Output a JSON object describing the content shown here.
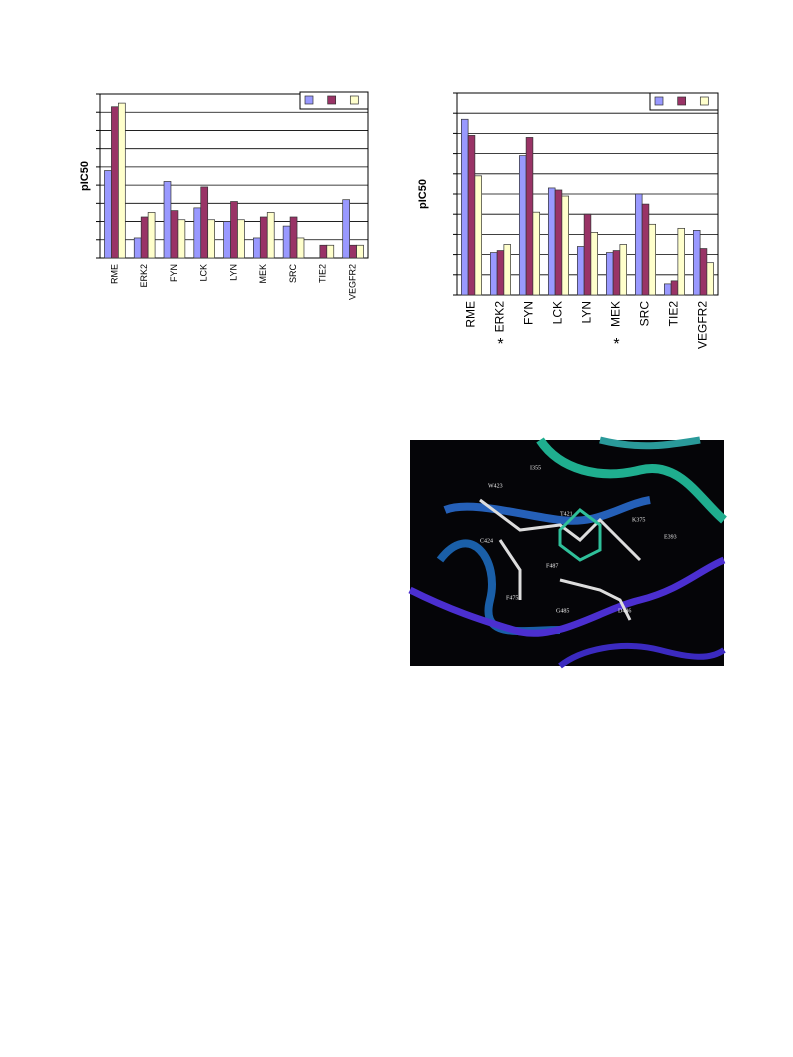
{
  "chart_data": [
    {
      "type": "bar",
      "y_label": "pIC50",
      "categories": [
        "RME",
        "ERK2",
        "FYN",
        "LCK",
        "LYN",
        "MEK",
        "SRC",
        "TIE2",
        "VEGFR2"
      ],
      "series": [
        {
          "color": "#9999ff",
          "values": [
            4.8,
            1.1,
            4.2,
            2.75,
            2.0,
            1.1,
            1.75,
            0,
            3.2
          ]
        },
        {
          "color": "#993366",
          "values": [
            8.3,
            2.25,
            2.6,
            3.9,
            3.1,
            2.25,
            2.25,
            0.7,
            0.7
          ]
        },
        {
          "color": "#ffffcc",
          "values": [
            8.5,
            2.5,
            2.1,
            2.1,
            2.1,
            2.5,
            1.1,
            0.7,
            0.7
          ]
        }
      ],
      "ylim": [
        0,
        9
      ],
      "grid": true
    },
    {
      "type": "bar",
      "y_label": "pIC50",
      "categories": [
        "RME",
        "ERK2",
        "FYN",
        "LCK",
        "LYN",
        "MEK",
        "SRC",
        "TIE2",
        "VEGFR2"
      ],
      "series": [
        {
          "color": "#9999ff",
          "values": [
            8.7,
            2.1,
            6.9,
            5.3,
            2.4,
            2.1,
            5.0,
            0.55,
            3.2
          ]
        },
        {
          "color": "#993366",
          "values": [
            7.9,
            2.2,
            7.8,
            5.2,
            4.0,
            2.2,
            4.5,
            0.7,
            2.3
          ]
        },
        {
          "color": "#ffffcc",
          "values": [
            5.9,
            2.5,
            4.1,
            4.9,
            3.1,
            2.5,
            3.5,
            3.3,
            1.6
          ]
        }
      ],
      "ylim": [
        0,
        10
      ],
      "grid": true,
      "annotations": [
        {
          "text": "*",
          "category": "ERK2"
        },
        {
          "text": "*",
          "category": "MEK"
        }
      ]
    }
  ],
  "figure": {
    "residue_labels": [
      "I355",
      "W423",
      "T421",
      "K375",
      "C424",
      "E393",
      "F487",
      "F475",
      "G485",
      "D486"
    ]
  }
}
